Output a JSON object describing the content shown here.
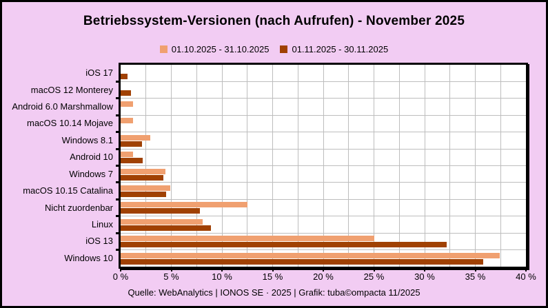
{
  "title": "Betriebssystem-Versionen (nach Aufrufen) - November 2025",
  "legend": [
    {
      "label": "01.10.2025 - 31.10.2025",
      "color": "#F0A070"
    },
    {
      "label": "01.11.2025 - 30.11.2025",
      "color": "#A04103"
    }
  ],
  "footer": "Quelle: WebAnalytics | IONOS SE · 2025 | Grafik: tuba©ompacta 11/2025",
  "colors": {
    "background": "#F2CCF3",
    "plot_background": "#FFFFFF",
    "grid": "#BDBDBD",
    "axis": "#000000",
    "series_oct": "#F0A070",
    "series_nov": "#A04103"
  },
  "chart_data": {
    "type": "bar",
    "orientation": "horizontal",
    "title": "Betriebssystem-Versionen (nach Aufrufen) - November 2025",
    "categories": [
      "iOS 17",
      "macOS 12 Monterey",
      "Android 6.0 Marshmallow",
      "macOS 10.14 Mojave",
      "Windows 8.1",
      "Android 10",
      "Windows 7",
      "macOS 10.15 Catalina",
      "Nicht zuordenbar",
      "Linux",
      "iOS 13",
      "Windows 10"
    ],
    "series": [
      {
        "name": "01.10.2025 - 31.10.2025",
        "color": "#F0A070",
        "values": [
          0,
          0,
          1.2,
          1.2,
          2.9,
          1.2,
          4.4,
          4.9,
          12.5,
          8.1,
          25.0,
          37.4
        ]
      },
      {
        "name": "01.11.2025 - 30.11.2025",
        "color": "#A04103",
        "values": [
          0.7,
          1.0,
          0,
          0,
          2.1,
          2.2,
          4.2,
          4.5,
          7.8,
          8.9,
          32.2,
          35.8
        ]
      }
    ],
    "xlabel": "",
    "ylabel": "",
    "xlim": [
      0,
      40
    ],
    "x_tick_step": 5,
    "x_tick_labels": [
      "0 %",
      "5 %",
      "10 %",
      "15 %",
      "20 %",
      "25 %",
      "30 %",
      "35 %",
      "40 %"
    ],
    "minor_grid_step": 2.5,
    "grid": "on",
    "legend_position": "top-center",
    "unit": "%"
  }
}
